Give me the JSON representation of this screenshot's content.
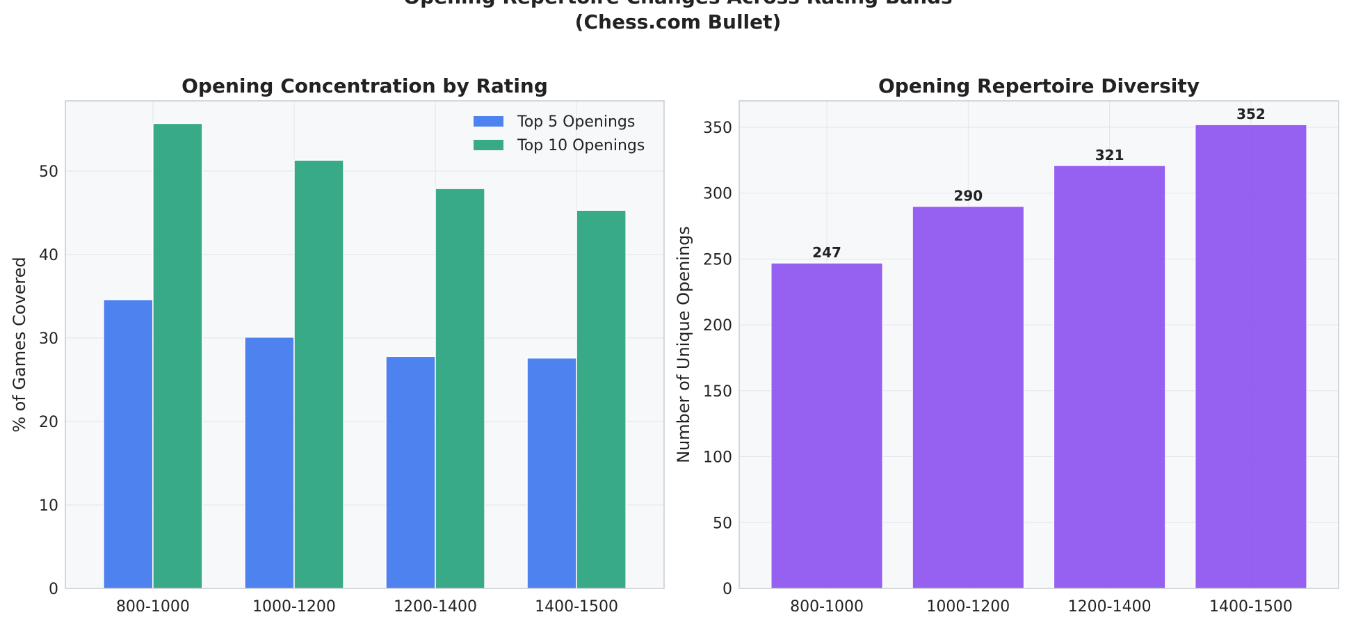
{
  "figure": {
    "suptitle_line1": "Opening Repertoire Changes Across Rating Bands",
    "suptitle_line2": "(Chess.com Bullet)"
  },
  "colors": {
    "top5": "#3b74ec",
    "top10": "#22a17a",
    "diversity": "#8b4fef",
    "plot_bg": "#f7f8fa",
    "grid": "#e3e5ea",
    "frame": "#c8cbd0",
    "text": "#222222"
  },
  "chart_data": [
    {
      "type": "bar",
      "title": "Opening Concentration by Rating",
      "xlabel": "",
      "ylabel": "% of Games Covered",
      "categories": [
        "800-1000",
        "1000-1200",
        "1200-1400",
        "1400-1500"
      ],
      "series": [
        {
          "name": "Top 5 Openings",
          "values": [
            34.6,
            30.1,
            27.8,
            27.6
          ]
        },
        {
          "name": "Top 10 Openings",
          "values": [
            55.7,
            51.3,
            47.9,
            45.3
          ]
        }
      ],
      "ylim": [
        0,
        58.4
      ],
      "yticks": [
        0,
        10,
        20,
        30,
        40,
        50
      ],
      "grid": true,
      "legend": "top-right"
    },
    {
      "type": "bar",
      "title": "Opening Repertoire Diversity",
      "xlabel": "",
      "ylabel": "Number of Unique Openings",
      "categories": [
        "800-1000",
        "1000-1200",
        "1200-1400",
        "1400-1500"
      ],
      "values": [
        247,
        290,
        321,
        352
      ],
      "value_labels": [
        "247",
        "290",
        "321",
        "352"
      ],
      "ylim": [
        0,
        370
      ],
      "yticks": [
        0,
        50,
        100,
        150,
        200,
        250,
        300,
        350
      ],
      "grid": true
    }
  ]
}
